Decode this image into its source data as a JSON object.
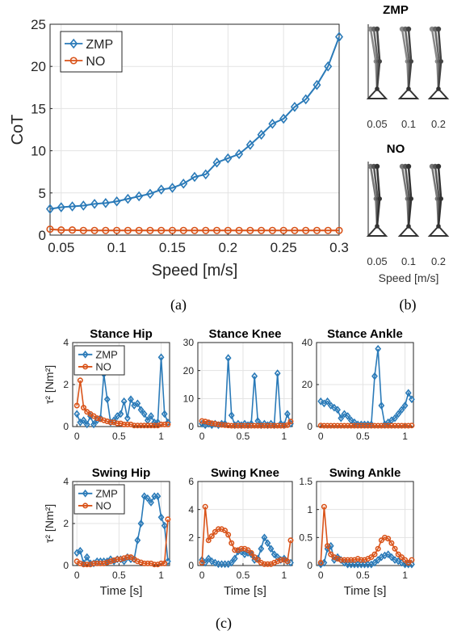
{
  "captions": {
    "a": "(a)",
    "b": "(b)",
    "c": "(c)"
  },
  "colors": {
    "ZMP": "#2a7ab8",
    "NO": "#d95319"
  },
  "panel_b": {
    "top_title": "ZMP",
    "bottom_title": "NO",
    "speed_labels": [
      "0.05",
      "0.1",
      "0.2"
    ],
    "xlabel": "Speed [m/s]"
  },
  "chart_data": [
    {
      "id": "cot",
      "type": "line",
      "title": "",
      "xlabel": "Speed [m/s]",
      "ylabel": "CoT",
      "xlim": [
        0.04,
        0.3
      ],
      "ylim": [
        0,
        25
      ],
      "xticks": [
        0.05,
        0.1,
        0.15,
        0.2,
        0.25,
        0.3
      ],
      "yticks": [
        0,
        5,
        10,
        15,
        20,
        25
      ],
      "grid": true,
      "legend": "top-left",
      "x": [
        0.04,
        0.05,
        0.06,
        0.07,
        0.08,
        0.09,
        0.1,
        0.11,
        0.12,
        0.13,
        0.14,
        0.15,
        0.16,
        0.17,
        0.18,
        0.19,
        0.2,
        0.21,
        0.22,
        0.23,
        0.24,
        0.25,
        0.26,
        0.27,
        0.28,
        0.29,
        0.3
      ],
      "series": [
        {
          "name": "ZMP",
          "marker": "diamond",
          "values": [
            3.1,
            3.3,
            3.4,
            3.5,
            3.7,
            3.8,
            4.0,
            4.3,
            4.6,
            4.9,
            5.4,
            5.6,
            6.1,
            6.9,
            7.2,
            8.6,
            9.1,
            9.6,
            10.7,
            11.9,
            13.2,
            13.8,
            15.2,
            16.1,
            17.8,
            20.0,
            23.5
          ]
        },
        {
          "name": "NO",
          "marker": "circle",
          "values": [
            0.7,
            0.6,
            0.6,
            0.55,
            0.55,
            0.55,
            0.55,
            0.55,
            0.55,
            0.55,
            0.55,
            0.55,
            0.55,
            0.55,
            0.55,
            0.55,
            0.55,
            0.55,
            0.55,
            0.55,
            0.55,
            0.55,
            0.55,
            0.55,
            0.55,
            0.55,
            0.55
          ]
        }
      ]
    },
    {
      "id": "stance_hip",
      "type": "line",
      "title": "Stance Hip",
      "xlabel": "",
      "ylabel": "τ² [Nm²]",
      "xlim": [
        -0.05,
        1.1
      ],
      "ylim": [
        0,
        4
      ],
      "xticks": [
        0,
        0.5,
        1
      ],
      "yticks": [
        0,
        2,
        4
      ],
      "grid": true,
      "legend": "top-left",
      "x": [
        0,
        0.04,
        0.08,
        0.12,
        0.16,
        0.2,
        0.24,
        0.28,
        0.32,
        0.36,
        0.4,
        0.44,
        0.48,
        0.52,
        0.56,
        0.6,
        0.64,
        0.68,
        0.72,
        0.76,
        0.8,
        0.84,
        0.88,
        0.92,
        0.96,
        1.0,
        1.04,
        1.08
      ],
      "series": [
        {
          "name": "ZMP",
          "marker": "diamond",
          "values": [
            0.6,
            0.2,
            0.3,
            0.1,
            0.5,
            0.1,
            0.3,
            0.4,
            2.5,
            1.3,
            0.2,
            0.3,
            0.5,
            0.6,
            1.2,
            0.4,
            1.3,
            1.0,
            1.1,
            0.8,
            0.6,
            0.3,
            0.5,
            0.2,
            0.2,
            3.3,
            0.6,
            0.2
          ]
        },
        {
          "name": "NO",
          "marker": "circle",
          "values": [
            1.0,
            2.2,
            0.9,
            0.7,
            0.6,
            0.5,
            0.4,
            0.35,
            0.3,
            0.25,
            0.2,
            0.2,
            0.15,
            0.15,
            0.1,
            0.1,
            0.1,
            0.05,
            0.05,
            0.05,
            0.05,
            0.05,
            0.05,
            0.05,
            0.05,
            0.1,
            0.1,
            0.1
          ]
        }
      ]
    },
    {
      "id": "stance_knee",
      "type": "line",
      "title": "Stance Knee",
      "xlabel": "",
      "ylabel": "",
      "xlim": [
        -0.05,
        1.1
      ],
      "ylim": [
        0,
        30
      ],
      "xticks": [
        0,
        0.5,
        1
      ],
      "yticks": [
        0,
        10,
        20,
        30
      ],
      "grid": true,
      "legend": "none",
      "x": [
        0,
        0.04,
        0.08,
        0.12,
        0.16,
        0.2,
        0.24,
        0.28,
        0.32,
        0.36,
        0.4,
        0.44,
        0.48,
        0.52,
        0.56,
        0.6,
        0.64,
        0.68,
        0.72,
        0.76,
        0.8,
        0.84,
        0.88,
        0.92,
        0.96,
        1.0,
        1.04,
        1.08
      ],
      "series": [
        {
          "name": "ZMP",
          "marker": "diamond",
          "values": [
            1.0,
            0.5,
            1.0,
            0.5,
            1.0,
            0.5,
            1.0,
            1.0,
            24.5,
            4.0,
            0.5,
            1.0,
            0.5,
            1.0,
            0.5,
            1.0,
            18.0,
            2.0,
            0.5,
            1.0,
            0.5,
            1.0,
            0.5,
            19.0,
            1.0,
            0.5,
            4.5,
            1.0
          ]
        },
        {
          "name": "NO",
          "marker": "circle",
          "values": [
            2.0,
            1.8,
            1.5,
            1.2,
            1.0,
            0.8,
            0.6,
            0.5,
            0.4,
            0.3,
            0.3,
            0.3,
            0.3,
            0.3,
            0.3,
            0.3,
            0.3,
            0.3,
            0.3,
            0.3,
            0.3,
            0.3,
            0.3,
            0.3,
            0.3,
            0.3,
            0.5,
            1.8
          ]
        }
      ]
    },
    {
      "id": "stance_ankle",
      "type": "line",
      "title": "Stance Ankle",
      "xlabel": "",
      "ylabel": "",
      "xlim": [
        -0.05,
        1.1
      ],
      "ylim": [
        0,
        40
      ],
      "xticks": [
        0,
        0.5,
        1
      ],
      "yticks": [
        0,
        20,
        40
      ],
      "grid": true,
      "legend": "none",
      "x": [
        0,
        0.04,
        0.08,
        0.12,
        0.16,
        0.2,
        0.24,
        0.28,
        0.32,
        0.36,
        0.4,
        0.44,
        0.48,
        0.52,
        0.56,
        0.6,
        0.64,
        0.68,
        0.72,
        0.76,
        0.8,
        0.84,
        0.88,
        0.92,
        0.96,
        1.0,
        1.04,
        1.08
      ],
      "series": [
        {
          "name": "ZMP",
          "marker": "diamond",
          "values": [
            12,
            11,
            12,
            10,
            9,
            8,
            4,
            6,
            5,
            3,
            2,
            1,
            1,
            1,
            1,
            1,
            24,
            37,
            10,
            1,
            2,
            3,
            4,
            6,
            8,
            10,
            16,
            13
          ]
        },
        {
          "name": "NO",
          "marker": "circle",
          "values": [
            0.5,
            0.4,
            0.4,
            0.4,
            0.4,
            0.4,
            0.4,
            0.4,
            0.4,
            0.4,
            0.4,
            0.4,
            0.4,
            0.4,
            0.4,
            0.4,
            0.4,
            0.4,
            0.4,
            0.4,
            0.4,
            0.4,
            0.4,
            0.4,
            0.4,
            0.4,
            0.4,
            0.5
          ]
        }
      ]
    },
    {
      "id": "swing_hip",
      "type": "line",
      "title": "Swing Hip",
      "xlabel": "Time [s]",
      "ylabel": "τ² [Nm²]",
      "xlim": [
        -0.05,
        1.1
      ],
      "ylim": [
        0,
        4
      ],
      "xticks": [
        0,
        0.5,
        1
      ],
      "yticks": [
        0,
        2,
        4
      ],
      "grid": true,
      "legend": "top-left",
      "x": [
        0,
        0.04,
        0.08,
        0.12,
        0.16,
        0.2,
        0.24,
        0.28,
        0.32,
        0.36,
        0.4,
        0.44,
        0.48,
        0.52,
        0.56,
        0.6,
        0.64,
        0.68,
        0.72,
        0.76,
        0.8,
        0.84,
        0.88,
        0.92,
        0.96,
        1.0,
        1.04,
        1.08
      ],
      "series": [
        {
          "name": "ZMP",
          "marker": "diamond",
          "values": [
            0.6,
            0.7,
            0.1,
            0.4,
            0.1,
            0.1,
            0.2,
            0.2,
            0.2,
            0.2,
            0.3,
            0.2,
            0.3,
            0.3,
            0.2,
            0.4,
            0.3,
            0.3,
            1.2,
            2.0,
            3.3,
            3.2,
            3.0,
            3.3,
            3.3,
            2.3,
            1.9,
            0.2
          ]
        },
        {
          "name": "NO",
          "marker": "circle",
          "values": [
            0.2,
            0.1,
            0.05,
            0.05,
            0.05,
            0.1,
            0.1,
            0.1,
            0.1,
            0.15,
            0.2,
            0.25,
            0.3,
            0.3,
            0.35,
            0.4,
            0.4,
            0.3,
            0.2,
            0.15,
            0.1,
            0.1,
            0.1,
            0.05,
            0.05,
            0.1,
            0.1,
            2.2
          ]
        }
      ]
    },
    {
      "id": "swing_knee",
      "type": "line",
      "title": "Swing Knee",
      "xlabel": "Time [s]",
      "ylabel": "",
      "xlim": [
        -0.05,
        1.1
      ],
      "ylim": [
        0,
        6
      ],
      "xticks": [
        0,
        0.5,
        1
      ],
      "yticks": [
        0,
        2,
        4,
        6
      ],
      "grid": true,
      "legend": "none",
      "x": [
        0,
        0.04,
        0.08,
        0.12,
        0.16,
        0.2,
        0.24,
        0.28,
        0.32,
        0.36,
        0.4,
        0.44,
        0.48,
        0.52,
        0.56,
        0.6,
        0.64,
        0.68,
        0.72,
        0.76,
        0.8,
        0.84,
        0.88,
        0.92,
        0.96,
        1.0,
        1.04,
        1.08
      ],
      "series": [
        {
          "name": "ZMP",
          "marker": "diamond",
          "values": [
            0.4,
            0.2,
            0.5,
            0.3,
            0.2,
            0.1,
            0.1,
            0.1,
            0.1,
            0.2,
            0.5,
            1.0,
            1.0,
            0.8,
            0.9,
            0.8,
            0.4,
            0.5,
            1.2,
            2.0,
            1.6,
            1.2,
            0.8,
            0.6,
            0.4,
            0.5,
            0.3,
            0.2
          ]
        },
        {
          "name": "NO",
          "marker": "circle",
          "values": [
            0.2,
            4.2,
            1.8,
            2.1,
            2.4,
            2.6,
            2.6,
            2.5,
            2.2,
            1.6,
            1.1,
            1.1,
            1.2,
            1.2,
            1.1,
            0.9,
            0.6,
            0.4,
            0.2,
            0.1,
            0.1,
            0.1,
            0.2,
            0.3,
            0.4,
            0.4,
            0.3,
            1.8
          ]
        }
      ]
    },
    {
      "id": "swing_ankle",
      "type": "line",
      "title": "Swing Ankle",
      "xlabel": "Time [s]",
      "ylabel": "",
      "xlim": [
        -0.05,
        1.1
      ],
      "ylim": [
        0,
        1.5
      ],
      "xticks": [
        0,
        0.5,
        1
      ],
      "yticks": [
        0,
        0.5,
        1,
        1.5
      ],
      "grid": true,
      "legend": "none",
      "x": [
        0,
        0.04,
        0.08,
        0.12,
        0.16,
        0.2,
        0.24,
        0.28,
        0.32,
        0.36,
        0.4,
        0.44,
        0.48,
        0.52,
        0.56,
        0.6,
        0.64,
        0.68,
        0.72,
        0.76,
        0.8,
        0.84,
        0.88,
        0.92,
        0.96,
        1.0,
        1.04,
        1.08
      ],
      "series": [
        {
          "name": "ZMP",
          "marker": "diamond",
          "values": [
            0.02,
            0.05,
            0.3,
            0.35,
            0.1,
            0.15,
            0.1,
            0.05,
            0.02,
            0.02,
            0.02,
            0.02,
            0.02,
            0.02,
            0.02,
            0.02,
            0.05,
            0.1,
            0.15,
            0.18,
            0.2,
            0.15,
            0.1,
            0.08,
            0.05,
            0.02,
            0.02,
            0.02
          ]
        },
        {
          "name": "NO",
          "marker": "circle",
          "values": [
            0.05,
            1.05,
            0.35,
            0.2,
            0.15,
            0.12,
            0.1,
            0.1,
            0.1,
            0.1,
            0.1,
            0.12,
            0.1,
            0.1,
            0.12,
            0.15,
            0.2,
            0.3,
            0.45,
            0.5,
            0.48,
            0.4,
            0.3,
            0.2,
            0.15,
            0.1,
            0.05,
            0.1
          ]
        }
      ]
    }
  ]
}
